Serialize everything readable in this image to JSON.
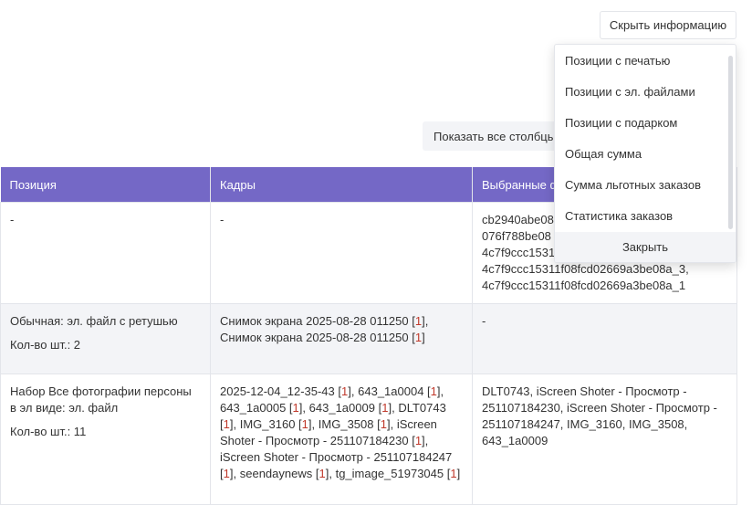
{
  "toolbar": {
    "hide_info_label": "Скрыть информацию",
    "show_all_columns_label": "Показать все столбцы"
  },
  "table": {
    "headers": [
      "Позиция",
      "Кадры",
      "Выбранные ф"
    ],
    "rows": [
      {
        "position": "-",
        "qty": "",
        "frames": "-",
        "selected": [
          "cb2940abe08",
          "076f788be08",
          "4c7f9ccc1531",
          "4c7f9ccc15311f08fcd02669a3be08a_3,",
          "4c7f9ccc15311f08fcd02669a3be08a_1"
        ]
      },
      {
        "position": "Обычная: эл. файл с ретушью",
        "qty": "Кол-во шт.: 2",
        "frames": [
          [
            "Снимок экрана 2025-08-28 011250",
            "1",
            ","
          ],
          [
            "Снимок экрана 2025-08-28 011250",
            "1",
            ""
          ]
        ],
        "selected": [
          "-"
        ]
      },
      {
        "position": "Набор Все фотографии персоны в эл виде: эл. файл",
        "qty": "Кол-во шт.: 11",
        "frames": [
          [
            "2025-12-04_12-35-43",
            "1",
            ","
          ],
          [
            "643_1a0004",
            "1",
            ","
          ],
          [
            "643_1a0005",
            "1",
            ","
          ],
          [
            "643_1a0009",
            "1",
            ","
          ],
          [
            "DLT0743",
            "1",
            ","
          ],
          [
            "IMG_3160",
            "1",
            ","
          ],
          [
            "IMG_3508",
            "1",
            ","
          ],
          [
            "iScreen Shoter - Просмотр - 251107184230",
            "1",
            ","
          ],
          [
            "iScreen Shoter - Просмотр - 251107184247",
            "1",
            ","
          ],
          [
            "seendaynews",
            "1",
            ","
          ],
          [
            "tg_image_51973045",
            "1",
            ""
          ]
        ],
        "selected": [
          "DLT0743, iScreen Shoter - Просмотр - 251107184230, iScreen Shoter - Просмотр - 251107184247, IMG_3160, IMG_3508, 643_1a0009"
        ]
      }
    ]
  },
  "dropdown": {
    "items": [
      "Позиции с печатью",
      "Позиции с эл. файлами",
      "Позиции с подарком",
      "Общая сумма",
      "Сумма льготных заказов",
      "Статистика заказов"
    ],
    "close_label": "Закрыть"
  },
  "colors": {
    "header": "#7468c6",
    "count_highlight": "#c0392b"
  }
}
